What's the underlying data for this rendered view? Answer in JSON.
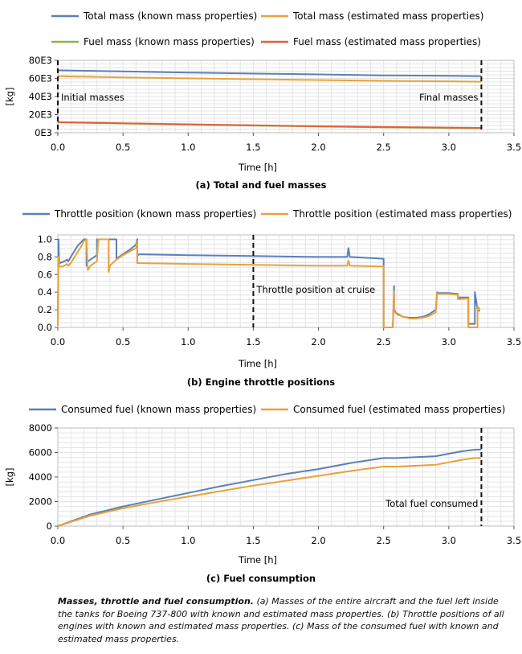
{
  "figure": {
    "caption_bold": "Masses, throttle and fuel consumption.",
    "caption_text": "(a) Masses of the entire aircraft and the fuel left inside the tanks for Boeing 737-800 with known and estimated mass properties. (b) Throttle positions of all engines with known and estimated mass properties. (c) Mass of the consumed fuel with known and estimated mass properties."
  },
  "colors": {
    "blue": "#5b80b7",
    "orange": "#e8a23a",
    "green": "#8ab548",
    "red": "#e2603a",
    "grid": "#e4e4e4"
  },
  "chart_data": [
    {
      "type": "line",
      "id": "a",
      "subtitle": "(a)  Total and fuel masses",
      "xlabel": "Time [h]",
      "ylabel": "[kg]",
      "xlim": [
        0,
        3.5
      ],
      "ylim": [
        0,
        80000
      ],
      "xticks": [
        0,
        0.5,
        1,
        1.5,
        2,
        2.5,
        3,
        3.5
      ],
      "xtick_labels": [
        "0.0",
        "0.5",
        "1.0",
        "1.5",
        "2.0",
        "2.5",
        "3.0",
        "3.5"
      ],
      "yticks": [
        0,
        20000,
        40000,
        60000,
        80000
      ],
      "ytick_labels": [
        "0E3",
        "20E3",
        "40E3",
        "60E3",
        "80E3"
      ],
      "series": [
        {
          "name": "Total mass (known mass properties)",
          "color": "#5b80b7",
          "x": [
            0,
            0.5,
            1,
            1.5,
            2,
            2.5,
            3,
            3.25
          ],
          "y": [
            69000,
            67700,
            66500,
            65400,
            64400,
            63400,
            62800,
            62400
          ]
        },
        {
          "name": "Total mass (estimated mass properties)",
          "color": "#e8a23a",
          "x": [
            0,
            0.5,
            1,
            1.5,
            2,
            2.5,
            3,
            3.25
          ],
          "y": [
            62500,
            61200,
            60100,
            59100,
            58200,
            57300,
            56800,
            56400
          ]
        },
        {
          "name": "Fuel mass (known mass properties)",
          "color": "#8ab548",
          "x": [
            0,
            0.5,
            1,
            1.5,
            2,
            2.5,
            3,
            3.25
          ],
          "y": [
            11500,
            10200,
            9000,
            7900,
            6900,
            5900,
            5300,
            5000
          ]
        },
        {
          "name": "Fuel mass (estimated mass properties)",
          "color": "#e2603a",
          "x": [
            0,
            0.5,
            1,
            1.5,
            2,
            2.5,
            3,
            3.25
          ],
          "y": [
            11800,
            10500,
            9300,
            8200,
            7200,
            6300,
            5700,
            5300
          ]
        }
      ],
      "markers": [
        {
          "x": 0,
          "label": "Initial masses",
          "label_side": "right"
        },
        {
          "x": 3.25,
          "label": "Final masses",
          "label_side": "left"
        }
      ]
    },
    {
      "type": "line",
      "id": "b",
      "subtitle": "(b)  Engine throttle positions",
      "xlabel": "Time [h]",
      "ylabel": "",
      "xlim": [
        0,
        3.5
      ],
      "ylim": [
        0,
        1.05
      ],
      "xticks": [
        0,
        0.5,
        1,
        1.5,
        2,
        2.5,
        3,
        3.5
      ],
      "xtick_labels": [
        "0.0",
        "0.5",
        "1.0",
        "1.5",
        "2.0",
        "2.5",
        "3.0",
        "3.5"
      ],
      "yticks": [
        0,
        0.2,
        0.4,
        0.6,
        0.8,
        1.0
      ],
      "ytick_labels": [
        "0.0",
        "0.2",
        "0.4",
        "0.6",
        "0.8",
        "1.0"
      ],
      "series": [
        {
          "name": "Throttle position (known mass properties)",
          "color": "#5b80b7",
          "x": [
            0,
            0.005,
            0.01,
            0.02,
            0.03,
            0.05,
            0.07,
            0.08,
            0.1,
            0.12,
            0.15,
            0.18,
            0.2,
            0.22,
            0.22,
            0.23,
            0.3,
            0.3,
            0.32,
            0.32,
            0.42,
            0.45,
            0.45,
            0.5,
            0.55,
            0.6,
            0.61,
            0.61,
            0.63,
            1.0,
            1.5,
            2.0,
            2.22,
            2.23,
            2.24,
            2.5,
            2.5,
            2.55,
            2.57,
            2.58,
            2.58,
            2.6,
            2.65,
            2.7,
            2.75,
            2.8,
            2.85,
            2.9,
            2.91,
            2.91,
            3.0,
            3.07,
            3.07,
            3.15,
            3.15,
            3.2,
            3.2,
            3.22,
            3.23,
            3.24
          ],
          "y": [
            0.02,
            1.0,
            0.75,
            0.73,
            0.74,
            0.75,
            0.77,
            0.75,
            0.8,
            0.85,
            0.92,
            0.97,
            1.0,
            1.0,
            0.7,
            0.75,
            0.82,
            1.0,
            1.0,
            1.0,
            1.0,
            1.0,
            0.78,
            0.83,
            0.88,
            0.94,
            1.0,
            0.82,
            0.83,
            0.82,
            0.81,
            0.8,
            0.8,
            0.9,
            0.8,
            0.78,
            0.0,
            0.0,
            0.0,
            0.47,
            0.2,
            0.16,
            0.12,
            0.11,
            0.11,
            0.12,
            0.15,
            0.2,
            0.4,
            0.39,
            0.39,
            0.38,
            0.34,
            0.34,
            0.04,
            0.04,
            0.4,
            0.2,
            0.19,
            0.19
          ]
        },
        {
          "name": "Throttle position (estimated mass properties)",
          "color": "#e8a23a",
          "x": [
            0,
            0.005,
            0.01,
            0.02,
            0.03,
            0.05,
            0.07,
            0.08,
            0.1,
            0.12,
            0.15,
            0.18,
            0.2,
            0.22,
            0.23,
            0.23,
            0.25,
            0.3,
            0.31,
            0.31,
            0.39,
            0.39,
            0.4,
            0.42,
            0.45,
            0.5,
            0.55,
            0.6,
            0.61,
            0.61,
            1.0,
            1.5,
            2.0,
            2.22,
            2.23,
            2.24,
            2.5,
            2.5,
            2.55,
            2.57,
            2.58,
            2.58,
            2.6,
            2.65,
            2.7,
            2.75,
            2.8,
            2.85,
            2.9,
            2.91,
            2.91,
            3.0,
            3.07,
            3.07,
            3.15,
            3.15,
            3.22,
            3.22,
            3.23,
            3.24
          ],
          "y": [
            0.02,
            0.8,
            0.7,
            0.69,
            0.69,
            0.7,
            0.72,
            0.7,
            0.73,
            0.78,
            0.85,
            0.92,
            0.98,
            1.0,
            0.65,
            0.65,
            0.7,
            0.75,
            1.0,
            1.0,
            1.0,
            0.63,
            0.7,
            0.73,
            0.77,
            0.82,
            0.86,
            0.9,
            0.98,
            0.73,
            0.72,
            0.71,
            0.7,
            0.7,
            0.76,
            0.7,
            0.69,
            0.0,
            0.0,
            0.0,
            0.41,
            0.19,
            0.15,
            0.12,
            0.1,
            0.1,
            0.11,
            0.13,
            0.17,
            0.39,
            0.38,
            0.38,
            0.37,
            0.32,
            0.33,
            0.0,
            0.0,
            0.24,
            0.22,
            0.21
          ]
        }
      ],
      "markers": [
        {
          "x": 1.5,
          "label": "Throttle position at cruise",
          "label_side": "right"
        }
      ]
    },
    {
      "type": "line",
      "id": "c",
      "subtitle": "(c)  Fuel consumption",
      "xlabel": "Time [h]",
      "ylabel": "[kg]",
      "xlim": [
        0,
        3.5
      ],
      "ylim": [
        0,
        8000
      ],
      "xticks": [
        0,
        0.5,
        1,
        1.5,
        2,
        2.5,
        3,
        3.5
      ],
      "xtick_labels": [
        "0.0",
        "0.5",
        "1.0",
        "1.5",
        "2.0",
        "2.5",
        "3.0",
        "3.5"
      ],
      "yticks": [
        0,
        2000,
        4000,
        6000,
        8000
      ],
      "ytick_labels": [
        "0",
        "2000",
        "4000",
        "6000",
        "8000"
      ],
      "series": [
        {
          "name": "Consumed fuel (known mass properties)",
          "color": "#5b80b7",
          "x": [
            0,
            0.25,
            0.5,
            0.75,
            1.0,
            1.25,
            1.5,
            1.75,
            2.0,
            2.25,
            2.5,
            2.6,
            2.9,
            3.0,
            3.1,
            3.2,
            3.25
          ],
          "y": [
            0,
            950,
            1600,
            2150,
            2700,
            3250,
            3750,
            4250,
            4650,
            5150,
            5550,
            5550,
            5700,
            5900,
            6100,
            6230,
            6250
          ]
        },
        {
          "name": "Consumed fuel (estimated mass properties)",
          "color": "#e8a23a",
          "x": [
            0,
            0.25,
            0.5,
            0.75,
            1.0,
            1.25,
            1.5,
            1.75,
            2.0,
            2.25,
            2.5,
            2.6,
            2.9,
            3.0,
            3.1,
            3.2,
            3.25
          ],
          "y": [
            0,
            850,
            1450,
            1950,
            2400,
            2850,
            3300,
            3700,
            4100,
            4500,
            4850,
            4850,
            5000,
            5200,
            5400,
            5550,
            5550
          ]
        }
      ],
      "markers": [
        {
          "x": 3.25,
          "label": "Total fuel consumed",
          "label_side": "left"
        }
      ]
    }
  ]
}
